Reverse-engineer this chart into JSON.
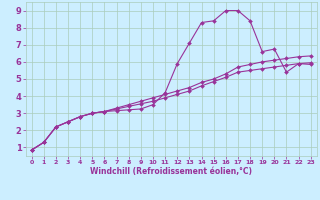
{
  "xlabel": "Windchill (Refroidissement éolien,°C)",
  "bg_color": "#cceeff",
  "grid_color": "#aaccbb",
  "line_color": "#993399",
  "xlim": [
    -0.5,
    23.5
  ],
  "ylim": [
    0.5,
    9.5
  ],
  "xticks": [
    0,
    1,
    2,
    3,
    4,
    5,
    6,
    7,
    8,
    9,
    10,
    11,
    12,
    13,
    14,
    15,
    16,
    17,
    18,
    19,
    20,
    21,
    22,
    23
  ],
  "yticks": [
    1,
    2,
    3,
    4,
    5,
    6,
    7,
    8,
    9
  ],
  "line1_x": [
    0,
    1,
    2,
    3,
    4,
    5,
    6,
    7,
    8,
    9,
    10,
    11,
    12,
    13,
    14,
    15,
    16,
    17,
    18,
    19,
    20,
    21,
    22,
    23
  ],
  "line1_y": [
    0.85,
    1.3,
    2.2,
    2.5,
    2.8,
    3.0,
    3.1,
    3.15,
    3.2,
    3.25,
    3.5,
    4.2,
    5.9,
    7.1,
    8.3,
    8.4,
    9.0,
    9.0,
    8.4,
    6.6,
    6.75,
    5.4,
    5.9,
    5.85
  ],
  "line2_x": [
    0,
    1,
    2,
    3,
    4,
    5,
    6,
    7,
    8,
    9,
    10,
    11,
    12,
    13,
    14,
    15,
    16,
    17,
    18,
    19,
    20,
    21,
    22,
    23
  ],
  "line2_y": [
    0.85,
    1.3,
    2.2,
    2.5,
    2.8,
    3.0,
    3.1,
    3.3,
    3.5,
    3.7,
    3.9,
    4.1,
    4.3,
    4.5,
    4.8,
    5.0,
    5.3,
    5.7,
    5.85,
    6.0,
    6.1,
    6.2,
    6.3,
    6.35
  ],
  "line3_x": [
    0,
    1,
    2,
    3,
    4,
    5,
    6,
    7,
    8,
    9,
    10,
    11,
    12,
    13,
    14,
    15,
    16,
    17,
    18,
    19,
    20,
    21,
    22,
    23
  ],
  "line3_y": [
    0.85,
    1.3,
    2.2,
    2.5,
    2.8,
    3.0,
    3.1,
    3.25,
    3.4,
    3.55,
    3.7,
    3.9,
    4.1,
    4.3,
    4.6,
    4.85,
    5.1,
    5.4,
    5.5,
    5.6,
    5.7,
    5.8,
    5.9,
    5.95
  ],
  "marker": "D",
  "marker_size": 2.0,
  "line_width": 0.8,
  "tick_fontsize_x": 4.5,
  "tick_fontsize_y": 6.0,
  "xlabel_fontsize": 5.5
}
